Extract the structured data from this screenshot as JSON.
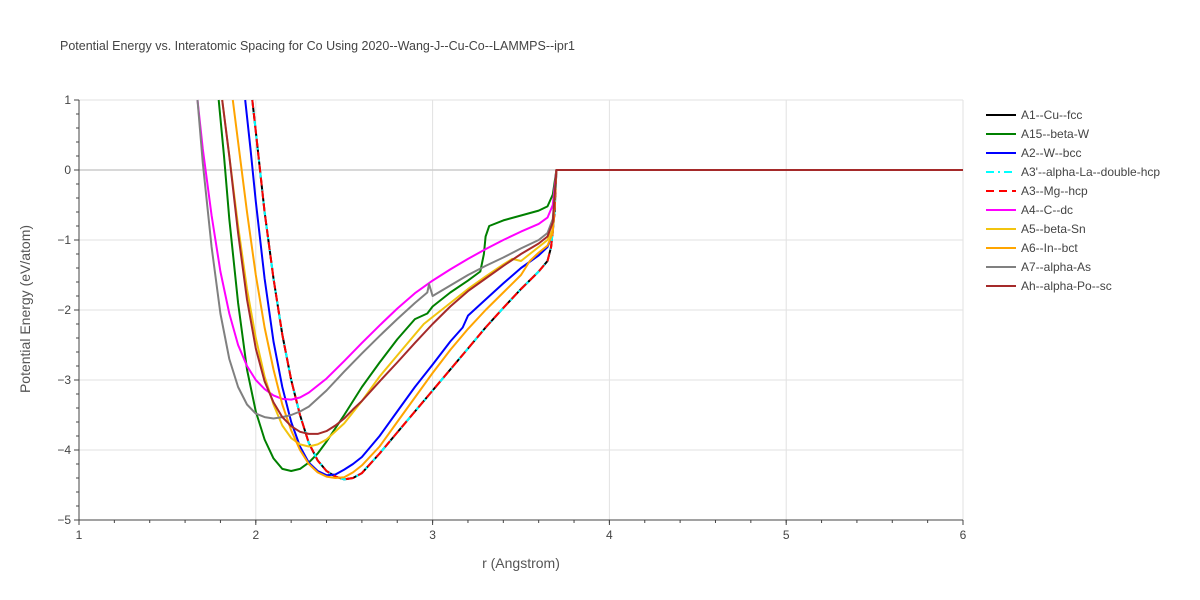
{
  "chart_data": {
    "type": "line",
    "title": "Potential Energy vs. Interatomic Spacing for Co Using 2020--Wang-J--Cu-Co--LAMMPS--ipr1",
    "xlabel": "r (Angstrom)",
    "ylabel": "Potential Energy (eV/atom)",
    "xlim": [
      1,
      6
    ],
    "ylim": [
      -5,
      1
    ],
    "xticks": [
      1,
      2,
      3,
      4,
      5,
      6
    ],
    "xtick_labels": [
      "1",
      "2",
      "3",
      "4",
      "5",
      "6"
    ],
    "yticks": [
      -5,
      -4,
      -3,
      -2,
      -1,
      0,
      1
    ],
    "ytick_labels": [
      "−5",
      "−4",
      "−3",
      "−2",
      "−1",
      "0",
      "1"
    ],
    "grid": true,
    "legend_position": "right",
    "series": [
      {
        "name": "A1--Cu--fcc",
        "color": "#000000",
        "dash": "solid",
        "x": [
          1.98,
          2.0,
          2.05,
          2.1,
          2.15,
          2.2,
          2.25,
          2.3,
          2.35,
          2.4,
          2.45,
          2.5,
          2.55,
          2.6,
          2.7,
          2.8,
          2.9,
          3.0,
          3.1,
          3.2,
          3.3,
          3.4,
          3.5,
          3.6,
          3.65,
          3.67,
          3.69,
          3.7,
          3.75,
          4.0,
          4.5,
          5.0,
          5.5,
          6.0
        ],
        "y": [
          1.0,
          0.55,
          -0.6,
          -1.55,
          -2.35,
          -3.0,
          -3.5,
          -3.9,
          -4.15,
          -4.3,
          -4.38,
          -4.42,
          -4.4,
          -4.33,
          -4.05,
          -3.75,
          -3.45,
          -3.15,
          -2.85,
          -2.55,
          -2.25,
          -1.97,
          -1.7,
          -1.45,
          -1.3,
          -1.1,
          -0.6,
          0.0,
          0.0,
          0.0,
          0.0,
          0.0,
          0.0,
          0.0
        ]
      },
      {
        "name": "A15--beta-W",
        "color": "#008000",
        "dash": "solid",
        "x": [
          1.79,
          1.82,
          1.85,
          1.9,
          1.95,
          2.0,
          2.05,
          2.1,
          2.15,
          2.2,
          2.25,
          2.3,
          2.35,
          2.4,
          2.5,
          2.6,
          2.7,
          2.8,
          2.9,
          2.97,
          3.0,
          3.1,
          3.2,
          3.27,
          3.29,
          3.3,
          3.32,
          3.4,
          3.5,
          3.6,
          3.65,
          3.68,
          3.7,
          3.75,
          4.0,
          4.5,
          5.0,
          5.5,
          6.0
        ],
        "y": [
          1.0,
          0.2,
          -0.7,
          -1.9,
          -2.85,
          -3.45,
          -3.85,
          -4.12,
          -4.27,
          -4.3,
          -4.27,
          -4.18,
          -4.05,
          -3.88,
          -3.5,
          -3.1,
          -2.75,
          -2.42,
          -2.13,
          -2.05,
          -1.95,
          -1.75,
          -1.58,
          -1.45,
          -1.2,
          -0.95,
          -0.8,
          -0.72,
          -0.65,
          -0.58,
          -0.52,
          -0.35,
          0.0,
          0.0,
          0.0,
          0.0,
          0.0,
          0.0,
          0.0
        ]
      },
      {
        "name": "A2--W--bcc",
        "color": "#0000ff",
        "dash": "solid",
        "x": [
          1.94,
          1.97,
          2.0,
          2.05,
          2.1,
          2.15,
          2.2,
          2.25,
          2.3,
          2.35,
          2.4,
          2.45,
          2.5,
          2.55,
          2.6,
          2.7,
          2.8,
          2.9,
          3.0,
          3.1,
          3.17,
          3.2,
          3.3,
          3.4,
          3.5,
          3.6,
          3.65,
          3.68,
          3.7,
          3.75,
          4.0,
          4.5,
          5.0,
          5.5,
          6.0
        ],
        "y": [
          1.0,
          0.3,
          -0.45,
          -1.55,
          -2.45,
          -3.1,
          -3.6,
          -3.95,
          -4.18,
          -4.3,
          -4.36,
          -4.35,
          -4.28,
          -4.2,
          -4.1,
          -3.8,
          -3.45,
          -3.1,
          -2.78,
          -2.45,
          -2.25,
          -2.08,
          -1.85,
          -1.62,
          -1.4,
          -1.22,
          -1.1,
          -0.9,
          0.0,
          0.0,
          0.0,
          0.0,
          0.0,
          0.0,
          0.0
        ]
      },
      {
        "name": "A3'--alpha-La--double-hcp",
        "color": "#00ffff",
        "dash": "dashdot",
        "x": [
          1.98,
          2.0,
          2.05,
          2.1,
          2.15,
          2.2,
          2.25,
          2.3,
          2.35,
          2.4,
          2.45,
          2.5,
          2.55,
          2.6,
          2.7,
          2.8,
          2.9,
          3.0,
          3.1,
          3.2,
          3.3,
          3.4,
          3.5,
          3.6,
          3.65,
          3.67,
          3.69,
          3.7,
          3.75,
          4.0,
          4.5,
          5.0,
          5.5,
          6.0
        ],
        "y": [
          1.0,
          0.55,
          -0.6,
          -1.55,
          -2.35,
          -3.0,
          -3.5,
          -3.9,
          -4.15,
          -4.3,
          -4.38,
          -4.42,
          -4.4,
          -4.33,
          -4.05,
          -3.75,
          -3.45,
          -3.15,
          -2.85,
          -2.55,
          -2.25,
          -1.97,
          -1.7,
          -1.45,
          -1.3,
          -1.1,
          -0.6,
          0.0,
          0.0,
          0.0,
          0.0,
          0.0,
          0.0,
          0.0
        ]
      },
      {
        "name": "A3--Mg--hcp",
        "color": "#ff0000",
        "dash": "dash",
        "x": [
          1.98,
          2.0,
          2.05,
          2.1,
          2.15,
          2.2,
          2.25,
          2.3,
          2.35,
          2.4,
          2.45,
          2.5,
          2.55,
          2.6,
          2.7,
          2.8,
          2.9,
          3.0,
          3.1,
          3.2,
          3.3,
          3.4,
          3.5,
          3.6,
          3.65,
          3.67,
          3.69,
          3.7,
          3.75,
          4.0,
          4.5,
          5.0,
          5.5,
          6.0
        ],
        "y": [
          1.0,
          0.55,
          -0.6,
          -1.55,
          -2.35,
          -3.0,
          -3.5,
          -3.9,
          -4.15,
          -4.3,
          -4.38,
          -4.42,
          -4.4,
          -4.33,
          -4.05,
          -3.75,
          -3.45,
          -3.15,
          -2.85,
          -2.55,
          -2.25,
          -1.97,
          -1.7,
          -1.45,
          -1.3,
          -1.1,
          -0.6,
          0.0,
          0.0,
          0.0,
          0.0,
          0.0,
          0.0,
          0.0
        ]
      },
      {
        "name": "A4--C--dc",
        "color": "#ff00ff",
        "dash": "solid",
        "x": [
          1.67,
          1.7,
          1.75,
          1.8,
          1.85,
          1.9,
          1.95,
          2.0,
          2.05,
          2.1,
          2.15,
          2.2,
          2.25,
          2.3,
          2.4,
          2.5,
          2.6,
          2.7,
          2.8,
          2.9,
          3.0,
          3.1,
          3.2,
          3.3,
          3.4,
          3.5,
          3.6,
          3.65,
          3.68,
          3.7,
          3.75,
          4.0,
          4.5,
          5.0,
          5.5,
          6.0
        ],
        "y": [
          1.0,
          0.3,
          -0.65,
          -1.45,
          -2.05,
          -2.5,
          -2.8,
          -3.0,
          -3.13,
          -3.22,
          -3.27,
          -3.28,
          -3.25,
          -3.18,
          -2.98,
          -2.73,
          -2.47,
          -2.22,
          -1.98,
          -1.76,
          -1.58,
          -1.42,
          -1.27,
          -1.13,
          -1.0,
          -0.88,
          -0.77,
          -0.68,
          -0.5,
          0.0,
          0.0,
          0.0,
          0.0,
          0.0,
          0.0,
          0.0
        ]
      },
      {
        "name": "A5--beta-Sn",
        "color": "#f2c40f",
        "dash": "solid",
        "x": [
          1.81,
          1.85,
          1.9,
          1.95,
          2.0,
          2.05,
          2.1,
          2.15,
          2.2,
          2.25,
          2.3,
          2.35,
          2.4,
          2.5,
          2.6,
          2.7,
          2.8,
          2.9,
          2.95,
          3.0,
          3.1,
          3.2,
          3.3,
          3.4,
          3.45,
          3.5,
          3.55,
          3.6,
          3.65,
          3.68,
          3.7,
          3.75,
          4.0,
          4.5,
          5.0,
          5.5,
          6.0
        ],
        "y": [
          1.0,
          0.2,
          -0.8,
          -1.7,
          -2.4,
          -2.95,
          -3.35,
          -3.65,
          -3.83,
          -3.92,
          -3.95,
          -3.92,
          -3.85,
          -3.62,
          -3.3,
          -2.95,
          -2.65,
          -2.35,
          -2.2,
          -2.1,
          -1.9,
          -1.7,
          -1.52,
          -1.35,
          -1.27,
          -1.3,
          -1.2,
          -1.1,
          -1.0,
          -0.85,
          0.0,
          0.0,
          0.0,
          0.0,
          0.0,
          0.0,
          0.0
        ]
      },
      {
        "name": "A6--In--bct",
        "color": "#ffa500",
        "dash": "solid",
        "x": [
          1.87,
          1.9,
          1.95,
          2.0,
          2.05,
          2.1,
          2.15,
          2.2,
          2.25,
          2.3,
          2.35,
          2.4,
          2.45,
          2.5,
          2.55,
          2.6,
          2.7,
          2.8,
          2.9,
          3.0,
          3.1,
          3.2,
          3.3,
          3.4,
          3.5,
          3.55,
          3.6,
          3.65,
          3.68,
          3.7,
          3.75,
          4.0,
          4.5,
          5.0,
          5.5,
          6.0
        ],
        "y": [
          1.0,
          0.4,
          -0.6,
          -1.5,
          -2.25,
          -2.85,
          -3.35,
          -3.72,
          -4.0,
          -4.2,
          -4.32,
          -4.38,
          -4.4,
          -4.39,
          -4.32,
          -4.22,
          -3.95,
          -3.6,
          -3.25,
          -2.9,
          -2.57,
          -2.27,
          -2.0,
          -1.75,
          -1.5,
          -1.3,
          -1.18,
          -1.08,
          -0.9,
          0.0,
          0.0,
          0.0,
          0.0,
          0.0,
          0.0,
          0.0
        ]
      },
      {
        "name": "A7--alpha-As",
        "color": "#808080",
        "dash": "solid",
        "x": [
          1.67,
          1.7,
          1.75,
          1.8,
          1.85,
          1.9,
          1.95,
          2.0,
          2.05,
          2.1,
          2.15,
          2.2,
          2.25,
          2.3,
          2.4,
          2.5,
          2.6,
          2.7,
          2.8,
          2.9,
          2.97,
          2.98,
          3.0,
          3.1,
          3.2,
          3.3,
          3.4,
          3.5,
          3.6,
          3.65,
          3.68,
          3.7,
          3.75,
          4.0,
          4.5,
          5.0,
          5.5,
          6.0
        ],
        "y": [
          1.0,
          0.1,
          -1.1,
          -2.05,
          -2.7,
          -3.1,
          -3.35,
          -3.48,
          -3.53,
          -3.55,
          -3.53,
          -3.5,
          -3.45,
          -3.38,
          -3.15,
          -2.88,
          -2.62,
          -2.37,
          -2.13,
          -1.9,
          -1.75,
          -1.63,
          -1.8,
          -1.65,
          -1.5,
          -1.37,
          -1.25,
          -1.12,
          -1.0,
          -0.9,
          -0.7,
          0.0,
          0.0,
          0.0,
          0.0,
          0.0,
          0.0,
          0.0
        ]
      },
      {
        "name": "Ah--alpha-Po--sc",
        "color": "#a52a2a",
        "dash": "solid",
        "x": [
          1.81,
          1.85,
          1.9,
          1.95,
          2.0,
          2.05,
          2.1,
          2.15,
          2.2,
          2.25,
          2.3,
          2.35,
          2.4,
          2.45,
          2.5,
          2.55,
          2.6,
          2.7,
          2.8,
          2.9,
          3.0,
          3.1,
          3.2,
          3.3,
          3.4,
          3.5,
          3.6,
          3.65,
          3.68,
          3.7,
          3.75,
          4.0,
          4.5,
          5.0,
          5.5,
          6.0
        ],
        "y": [
          1.0,
          0.2,
          -0.9,
          -1.85,
          -2.55,
          -3.02,
          -3.32,
          -3.53,
          -3.66,
          -3.74,
          -3.77,
          -3.77,
          -3.73,
          -3.65,
          -3.55,
          -3.42,
          -3.3,
          -3.02,
          -2.75,
          -2.47,
          -2.2,
          -1.95,
          -1.73,
          -1.55,
          -1.37,
          -1.2,
          -1.05,
          -0.95,
          -0.75,
          0.0,
          0.0,
          0.0,
          0.0,
          0.0,
          0.0,
          0.0
        ]
      }
    ]
  }
}
